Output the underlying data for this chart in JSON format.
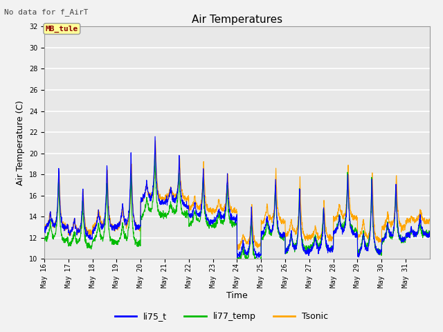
{
  "title": "Air Temperatures",
  "subtitle": "No data for f_AirT",
  "ylabel": "Air Temperature (C)",
  "xlabel": "Time",
  "ylim": [
    10,
    32
  ],
  "legend_labels": [
    "li75_t",
    "li77_temp",
    "Tsonic"
  ],
  "legend_colors": [
    "#0000FF",
    "#00BB00",
    "#FFA500"
  ],
  "annotation_text": "MB_tule",
  "annotation_color": "#8B0000",
  "annotation_bg": "#FFFF99",
  "plot_bg_color": "#E8E8E8",
  "fig_bg_color": "#F2F2F2",
  "grid_color": "#FFFFFF",
  "tick_labels": [
    "May 16",
    "May 17",
    "May 18",
    "May 19",
    "May 20",
    "May 21",
    "May 22",
    "May 23",
    "May 24",
    "May 25",
    "May 26",
    "May 27",
    "May 28",
    "May 29",
    "May 30",
    "May 31"
  ],
  "title_fontsize": 11,
  "axis_label_fontsize": 9,
  "tick_fontsize": 7,
  "legend_fontsize": 9,
  "subtitle_fontsize": 8
}
